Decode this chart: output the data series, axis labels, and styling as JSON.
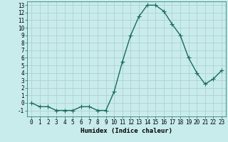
{
  "x": [
    0,
    1,
    2,
    3,
    4,
    5,
    6,
    7,
    8,
    9,
    10,
    11,
    12,
    13,
    14,
    15,
    16,
    17,
    18,
    19,
    20,
    21,
    22,
    23
  ],
  "y": [
    0.0,
    -0.5,
    -0.5,
    -1.0,
    -1.0,
    -1.0,
    -0.5,
    -0.5,
    -1.0,
    -1.0,
    1.5,
    5.5,
    9.0,
    11.5,
    13.0,
    13.0,
    12.2,
    10.5,
    9.0,
    6.0,
    4.0,
    2.5,
    3.2,
    4.3
  ],
  "line_color": "#1a6b5a",
  "marker": "+",
  "markersize": 4,
  "linewidth": 1.0,
  "bg_color": "#c8ecec",
  "grid_color": "#b0d0d0",
  "xlabel": "Humidex (Indice chaleur)",
  "xlim": [
    -0.5,
    23.5
  ],
  "ylim": [
    -1.8,
    13.5
  ],
  "yticks": [
    -1,
    0,
    1,
    2,
    3,
    4,
    5,
    6,
    7,
    8,
    9,
    10,
    11,
    12,
    13
  ],
  "xticks": [
    0,
    1,
    2,
    3,
    4,
    5,
    6,
    7,
    8,
    9,
    10,
    11,
    12,
    13,
    14,
    15,
    16,
    17,
    18,
    19,
    20,
    21,
    22,
    23
  ],
  "tick_fontsize": 5.5,
  "xlabel_fontsize": 6.5
}
